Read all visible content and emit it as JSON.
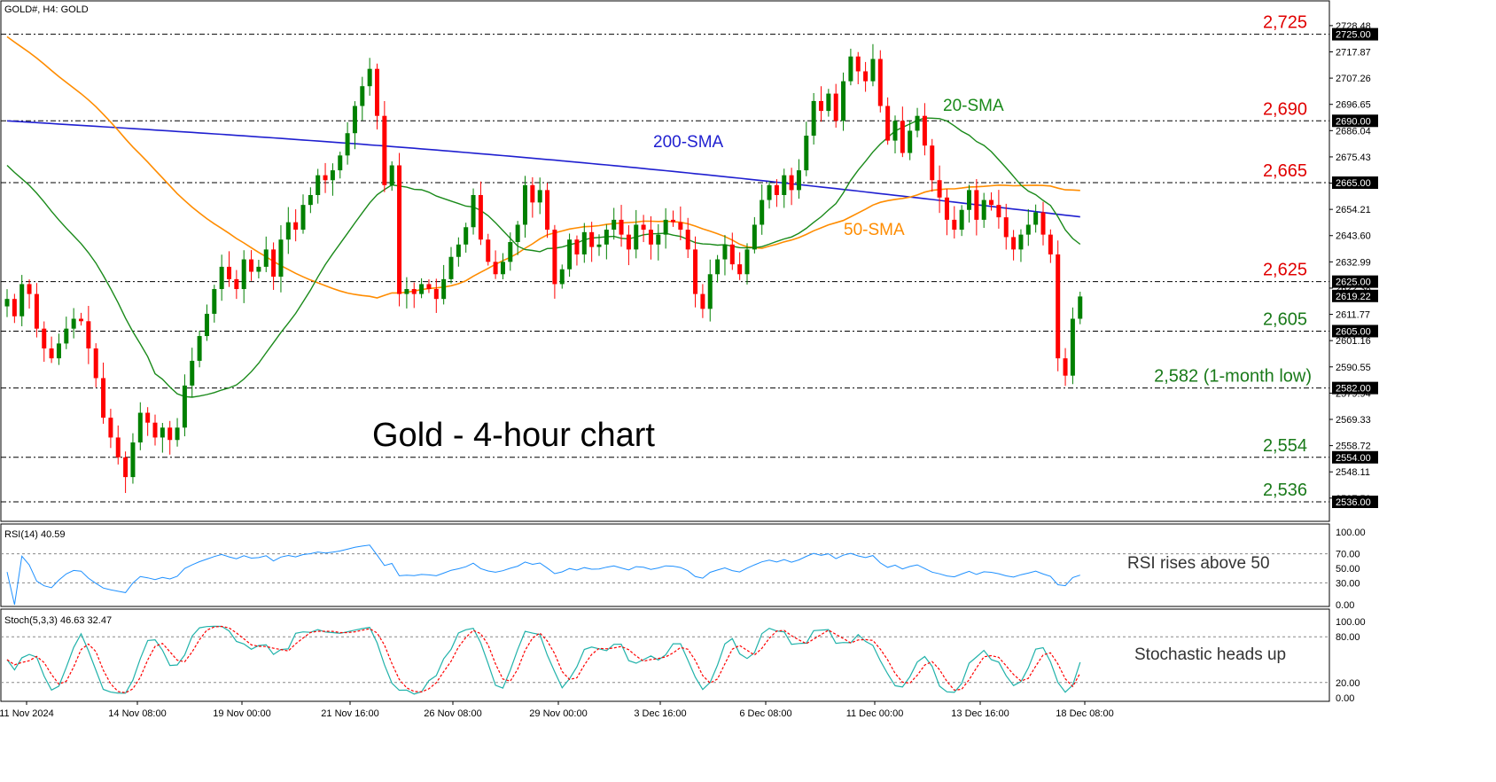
{
  "header": {
    "symbol": "GOLD#, H4:  GOLD"
  },
  "annotations": {
    "chart_title": "Gold - 4-hour chart",
    "sma200_label": "200-SMA",
    "sma50_label": "50-SMA",
    "sma20_label": "20-SMA",
    "rsi_note": "RSI rises above 50",
    "stoch_note": "Stochastic heads up"
  },
  "colors": {
    "bull": "#008000",
    "bear": "#ff0000",
    "sma200": "#1f1fd0",
    "sma50": "#ff8c00",
    "sma20": "#1a8a1a",
    "rsi": "#1e90ff",
    "stoch_main": "#20b2aa",
    "stoch_signal": "#ff0000",
    "level_red": "#e00000",
    "level_green": "#1a7a1a"
  },
  "chart_data": [
    {
      "type": "candlestick",
      "title": "Gold - 4-hour chart",
      "ylim": [
        2536,
        2728.8
      ],
      "price_axis_ticks": [
        "2728.48",
        "2717.87",
        "2707.26",
        "2696.65",
        "2686.04",
        "2675.43",
        "2664.82",
        "2654.21",
        "2643.60",
        "2632.99",
        "2622.38",
        "2611.77",
        "2601.16",
        "2590.55",
        "2579.94",
        "2569.33",
        "2558.72",
        "2548.11",
        "2537.50"
      ],
      "time_labels": [
        "11 Nov 2024",
        "14 Nov 08:00",
        "19 Nov 00:00",
        "21 Nov 16:00",
        "26 Nov 08:00",
        "29 Nov 00:00",
        "3 Dec 16:00",
        "6 Dec 08:00",
        "11 Dec 00:00",
        "13 Dec 16:00",
        "18 Dec 08:00"
      ],
      "levels": [
        {
          "value": 2725,
          "label": "2,725",
          "tag": "2725.00",
          "tone": "red"
        },
        {
          "value": 2690,
          "label": "2,690",
          "tag": "2690.00",
          "tone": "red"
        },
        {
          "value": 2665,
          "label": "2,665",
          "tag": "2665.00",
          "tone": "red"
        },
        {
          "value": 2625,
          "label": "2,625",
          "tag": "2625.00",
          "tone": "red"
        },
        {
          "value": 2605,
          "label": "2,605",
          "tag": "2605.00",
          "tone": "green"
        },
        {
          "value": 2582,
          "label": "2,582 (1-month low)",
          "tag": "2582.00",
          "tone": "green"
        },
        {
          "value": 2554,
          "label": "2,554",
          "tag": "2554.00",
          "tone": "green"
        },
        {
          "value": 2536,
          "label": "2,536",
          "tag": "2536.00",
          "tone": "green"
        }
      ],
      "current_price": {
        "value": 2619.22,
        "tag": "2619.22"
      },
      "closes": [
        2618,
        2611,
        2624,
        2620,
        2606,
        2598,
        2594,
        2600,
        2606,
        2610,
        2609,
        2598,
        2586,
        2570,
        2562,
        2554,
        2546,
        2560,
        2572,
        2568,
        2562,
        2566,
        2561,
        2566,
        2583,
        2593,
        2603,
        2612,
        2622,
        2631,
        2626,
        2622,
        2634,
        2629,
        2631,
        2638,
        2627,
        2642,
        2649,
        2646,
        2656,
        2660,
        2668,
        2666,
        2670,
        2676,
        2685,
        2696,
        2704,
        2711,
        2692,
        2664,
        2672,
        2620,
        2622,
        2620,
        2624,
        2622,
        2618,
        2626,
        2635,
        2640,
        2647,
        2660,
        2642,
        2633,
        2628,
        2633,
        2641,
        2648,
        2664,
        2657,
        2662,
        2646,
        2624,
        2630,
        2642,
        2636,
        2645,
        2639,
        2640,
        2646,
        2650,
        2644,
        2638,
        2648,
        2646,
        2640,
        2644,
        2650,
        2649,
        2646,
        2638,
        2620,
        2614,
        2628,
        2634,
        2640,
        2632,
        2628,
        2638,
        2648,
        2658,
        2664,
        2660,
        2668,
        2662,
        2670,
        2684,
        2698,
        2694,
        2701,
        2690,
        2706,
        2716,
        2710,
        2706,
        2715,
        2696,
        2682,
        2690,
        2677,
        2686,
        2692,
        2680,
        2666,
        2659,
        2650,
        2646,
        2654,
        2662,
        2650,
        2658,
        2656,
        2651,
        2643,
        2638,
        2644,
        2648,
        2653,
        2644,
        2636,
        2594,
        2587,
        2610,
        2619
      ],
      "sma200": {
        "start_value": 2690,
        "end_value": 2651
      },
      "sma50": {
        "start_value": 2724,
        "min_value": 2605,
        "end_value": 2665
      },
      "sma20": {
        "start_value": 2672,
        "end_value": 2640
      }
    },
    {
      "type": "line",
      "title": "RSI(14) 40.59",
      "ylim": [
        0,
        100
      ],
      "ticks": [
        "100.00",
        "70.00",
        "50.00",
        "30.00",
        "0.00"
      ],
      "levels": [
        70,
        30
      ],
      "last_value": 40.59
    },
    {
      "type": "line",
      "title": "Stoch(5,3,3) 46.63 32.47",
      "ylim": [
        0,
        100
      ],
      "ticks": [
        "100.00",
        "80.00",
        "20.00",
        "0.00"
      ],
      "levels": [
        80,
        20
      ],
      "last_main": 46.63,
      "last_signal": 32.47
    }
  ]
}
